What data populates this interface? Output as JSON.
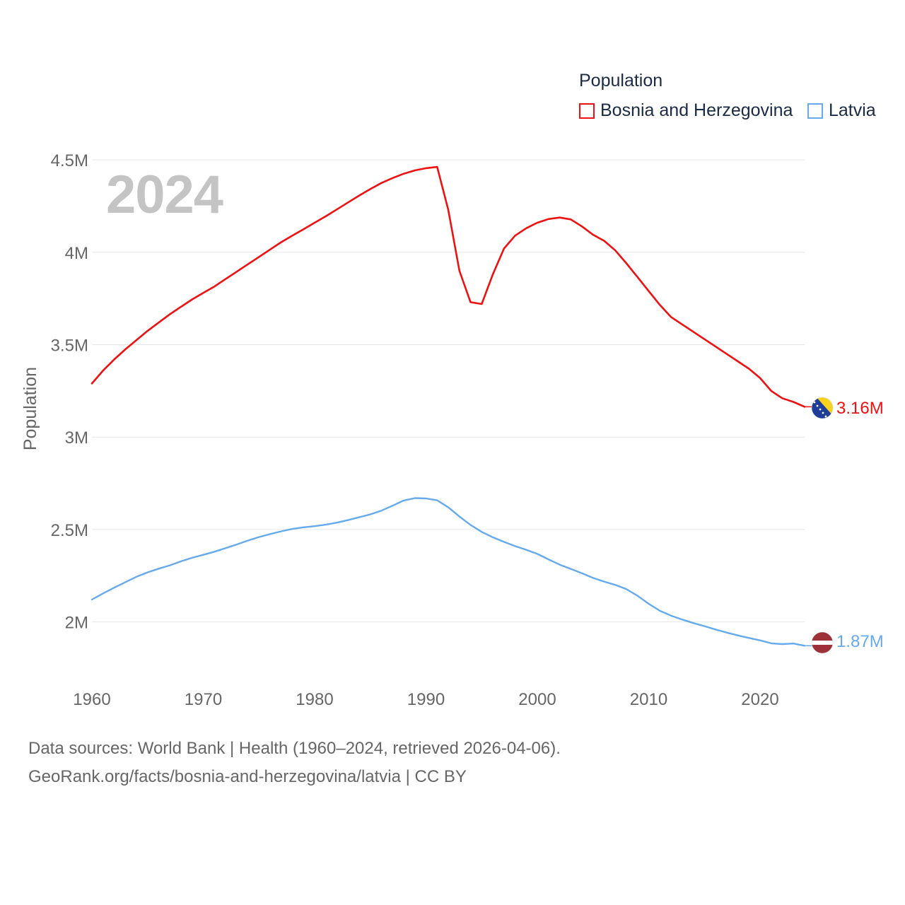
{
  "legend": {
    "title": "Population"
  },
  "year_label": "2024",
  "footer": {
    "line1": "Data sources: World Bank | Health (1960–2024, retrieved 2026-04-06).",
    "line2": "GeoRank.org/facts/bosnia-and-herzegovina/latvia | CC BY"
  },
  "colors": {
    "bosnia": "#ee1111",
    "latvia": "#66aaee",
    "grid": "#e6e6e6",
    "text": "#666666"
  },
  "chart_data": {
    "type": "line",
    "title": "Population",
    "xlabel": "",
    "ylabel": "Population",
    "xlim": [
      1960,
      2024
    ],
    "ylim": [
      1700000,
      4600000
    ],
    "x_ticks": [
      1960,
      1970,
      1980,
      1990,
      2000,
      2010,
      2020
    ],
    "x_tick_labels": [
      "1960",
      "1970",
      "1980",
      "1990",
      "2000",
      "2010",
      "2020"
    ],
    "y_ticks": [
      2000000,
      2500000,
      3000000,
      3500000,
      4000000,
      4500000
    ],
    "y_tick_labels": [
      "2M",
      "2.5M",
      "3M",
      "3.5M",
      "4M",
      "4.5M"
    ],
    "series": [
      {
        "name": "Bosnia and Herzegovina",
        "color": "#ee1111",
        "end_label": "3.16M",
        "x": [
          1960,
          1961,
          1962,
          1963,
          1964,
          1965,
          1966,
          1967,
          1968,
          1969,
          1970,
          1971,
          1972,
          1973,
          1974,
          1975,
          1976,
          1977,
          1978,
          1979,
          1980,
          1981,
          1982,
          1983,
          1984,
          1985,
          1986,
          1987,
          1988,
          1989,
          1990,
          1991,
          1992,
          1993,
          1994,
          1995,
          1996,
          1997,
          1998,
          1999,
          2000,
          2001,
          2002,
          2003,
          2004,
          2005,
          2006,
          2007,
          2008,
          2009,
          2010,
          2011,
          2012,
          2013,
          2014,
          2015,
          2016,
          2017,
          2018,
          2019,
          2020,
          2021,
          2022,
          2023,
          2024
        ],
        "values": [
          3290000,
          3360000,
          3420000,
          3475000,
          3525000,
          3575000,
          3620000,
          3665000,
          3705000,
          3745000,
          3780000,
          3815000,
          3855000,
          3895000,
          3935000,
          3975000,
          4015000,
          4055000,
          4090000,
          4125000,
          4160000,
          4195000,
          4232000,
          4270000,
          4307000,
          4342000,
          4375000,
          4402000,
          4425000,
          4443000,
          4455000,
          4462000,
          4230000,
          3900000,
          3730000,
          3720000,
          3880000,
          4020000,
          4090000,
          4130000,
          4160000,
          4180000,
          4188000,
          4178000,
          4140000,
          4095000,
          4062000,
          4010000,
          3940000,
          3865000,
          3790000,
          3715000,
          3650000,
          3610000,
          3570000,
          3530000,
          3490000,
          3450000,
          3410000,
          3370000,
          3320000,
          3250000,
          3210000,
          3190000,
          3164000
        ]
      },
      {
        "name": "Latvia",
        "color": "#66aaee",
        "end_label": "1.87M",
        "x": [
          1960,
          1961,
          1962,
          1963,
          1964,
          1965,
          1966,
          1967,
          1968,
          1969,
          1970,
          1971,
          1972,
          1973,
          1974,
          1975,
          1976,
          1977,
          1978,
          1979,
          1980,
          1981,
          1982,
          1983,
          1984,
          1985,
          1986,
          1987,
          1988,
          1989,
          1990,
          1991,
          1992,
          1993,
          1994,
          1995,
          1996,
          1997,
          1998,
          1999,
          2000,
          2001,
          2002,
          2003,
          2004,
          2005,
          2006,
          2007,
          2008,
          2009,
          2010,
          2011,
          2012,
          2013,
          2014,
          2015,
          2016,
          2017,
          2018,
          2019,
          2020,
          2021,
          2022,
          2023,
          2024
        ],
        "values": [
          2121000,
          2154000,
          2185000,
          2215000,
          2244000,
          2268000,
          2288000,
          2306000,
          2328000,
          2347000,
          2363000,
          2380000,
          2399000,
          2419000,
          2440000,
          2459000,
          2475000,
          2490000,
          2503000,
          2512000,
          2518000,
          2526000,
          2537000,
          2551000,
          2566000,
          2582000,
          2602000,
          2629000,
          2657000,
          2670000,
          2668000,
          2658000,
          2620000,
          2570000,
          2525000,
          2487000,
          2458000,
          2433000,
          2410000,
          2390000,
          2368000,
          2338000,
          2310000,
          2287000,
          2263000,
          2238000,
          2218000,
          2200000,
          2177000,
          2141000,
          2098000,
          2060000,
          2034000,
          2013000,
          1994000,
          1977000,
          1959000,
          1942000,
          1927000,
          1913000,
          1900000,
          1884000,
          1880000,
          1883000,
          1871000
        ]
      }
    ]
  }
}
